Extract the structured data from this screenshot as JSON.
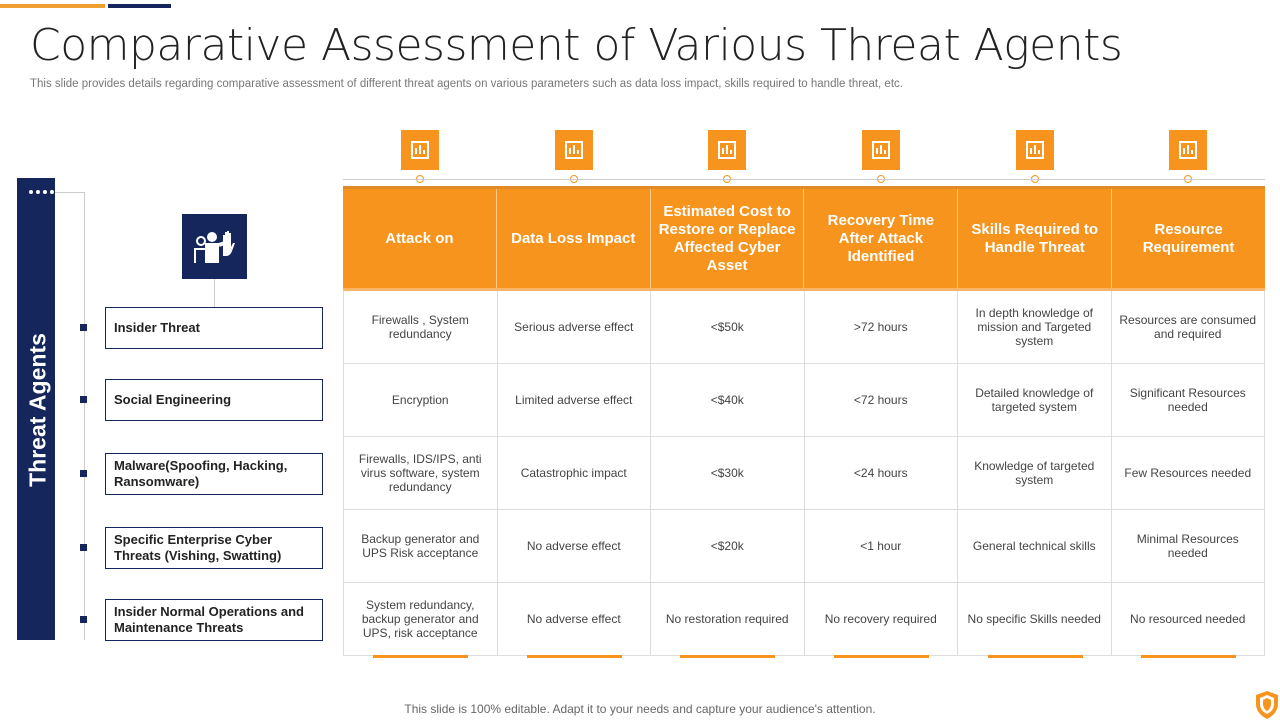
{
  "title": "Comparative Assessment of Various Threat Agents",
  "subtitle": "This slide provides details regarding comparative assessment of different threat agents on various parameters such as data loss impact, skills required to handle threat, etc.",
  "side_label": "Threat Agents",
  "agents": [
    "Insider Threat",
    "Social Engineering",
    "Malware(Spoofing, Hacking, Ransomware)",
    "Specific Enterprise  Cyber Threats (Vishing, Swatting)",
    "Insider Normal Operations and Maintenance Threats"
  ],
  "headers": [
    "Attack on",
    "Data Loss Impact",
    "Estimated Cost to Restore or Replace Affected Cyber Asset",
    "Recovery Time After Attack Identified",
    "Skills Required to Handle Threat",
    "Resource Requirement"
  ],
  "header_icons": [
    "hand-stop-icon",
    "chart-decline-icon",
    "document-grid-icon",
    "presentation-icon",
    "gear-person-icon",
    "server-icon"
  ],
  "rows": [
    [
      "Firewalls , System redundancy",
      "Serious adverse effect",
      "<$50k",
      ">72 hours",
      "In depth knowledge of mission and Targeted system",
      "Resources are consumed and required"
    ],
    [
      "Encryption",
      "Limited adverse effect",
      "<$40k",
      "<72 hours",
      "Detailed knowledge of targeted system",
      "Significant Resources needed"
    ],
    [
      "Firewalls, IDS/IPS, anti virus software, system redundancy",
      "Catastrophic impact",
      "<$30k",
      "<24 hours",
      "Knowledge of targeted system",
      "Few Resources needed"
    ],
    [
      "Backup generator and UPS Risk acceptance",
      "No adverse effect",
      "<$20k",
      "<1 hour",
      "General technical skills",
      "Minimal Resources needed"
    ],
    [
      "System redundancy, backup generator and UPS, risk acceptance",
      "No adverse effect",
      "No restoration required",
      "No recovery required",
      "No specific Skills needed",
      "No resourced needed"
    ]
  ],
  "footer": "This slide is 100% editable. Adapt it to your needs and capture your audience's attention.",
  "colors": {
    "orange": "#f7941d",
    "navy": "#14265c"
  }
}
